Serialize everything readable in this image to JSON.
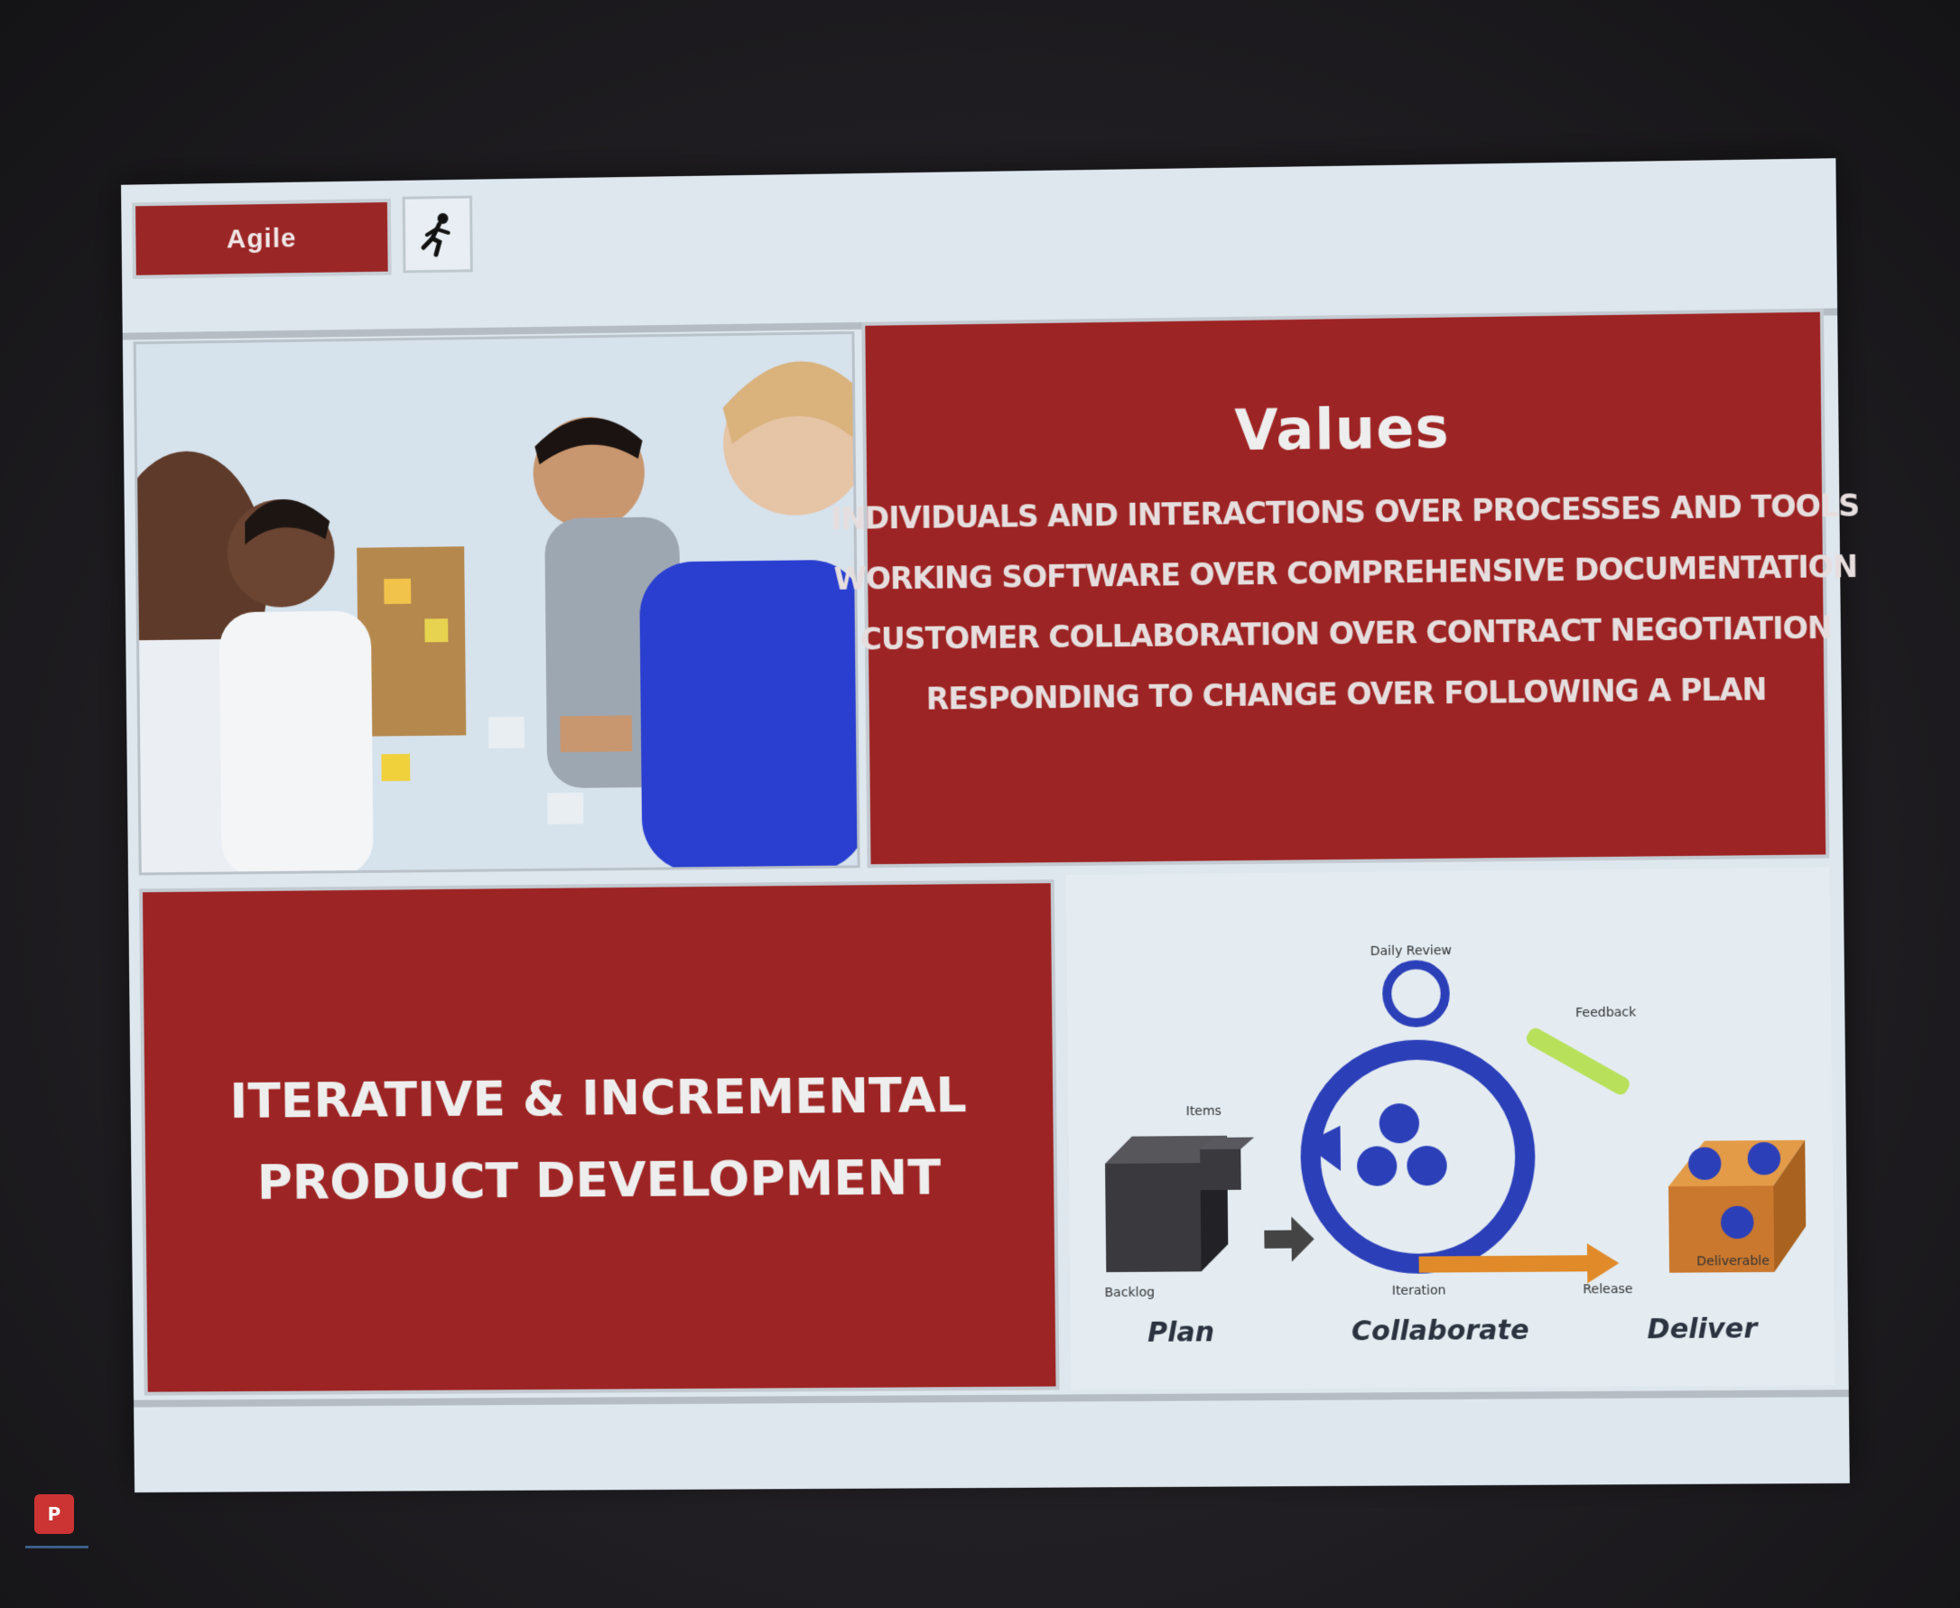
{
  "slide": {
    "tab_label": "Agile",
    "tab_icon": "runner-icon",
    "values": {
      "title": "Values",
      "lines": [
        "Individuals and interactions over processes and tools",
        "Working software over comprehensive documentation",
        "Customer collaboration over contract negotiation",
        "Responding to change over following a plan"
      ]
    },
    "iterative": {
      "line1": "Iterative & Incremental",
      "line2": "Product Development"
    },
    "diagram": {
      "labels": {
        "daily_review": "Daily Review",
        "feedback": "Feedback",
        "items": "Items",
        "backlog": "Backlog",
        "iteration": "Iteration",
        "release": "Release",
        "deliverable": "Deliverable"
      },
      "captions": {
        "plan": "Plan",
        "collaborate": "Collaborate",
        "deliver": "Deliver"
      }
    }
  },
  "taskbar": {
    "app_icon": "powerpoint-icon",
    "app_letter": "P"
  },
  "colors": {
    "accent_red": "#9d2424",
    "slide_bg": "#dfe7ee",
    "diagram_blue": "#2b3fb8",
    "arrow_orange": "#e08a2a",
    "feedback_green": "#b8e05a"
  }
}
